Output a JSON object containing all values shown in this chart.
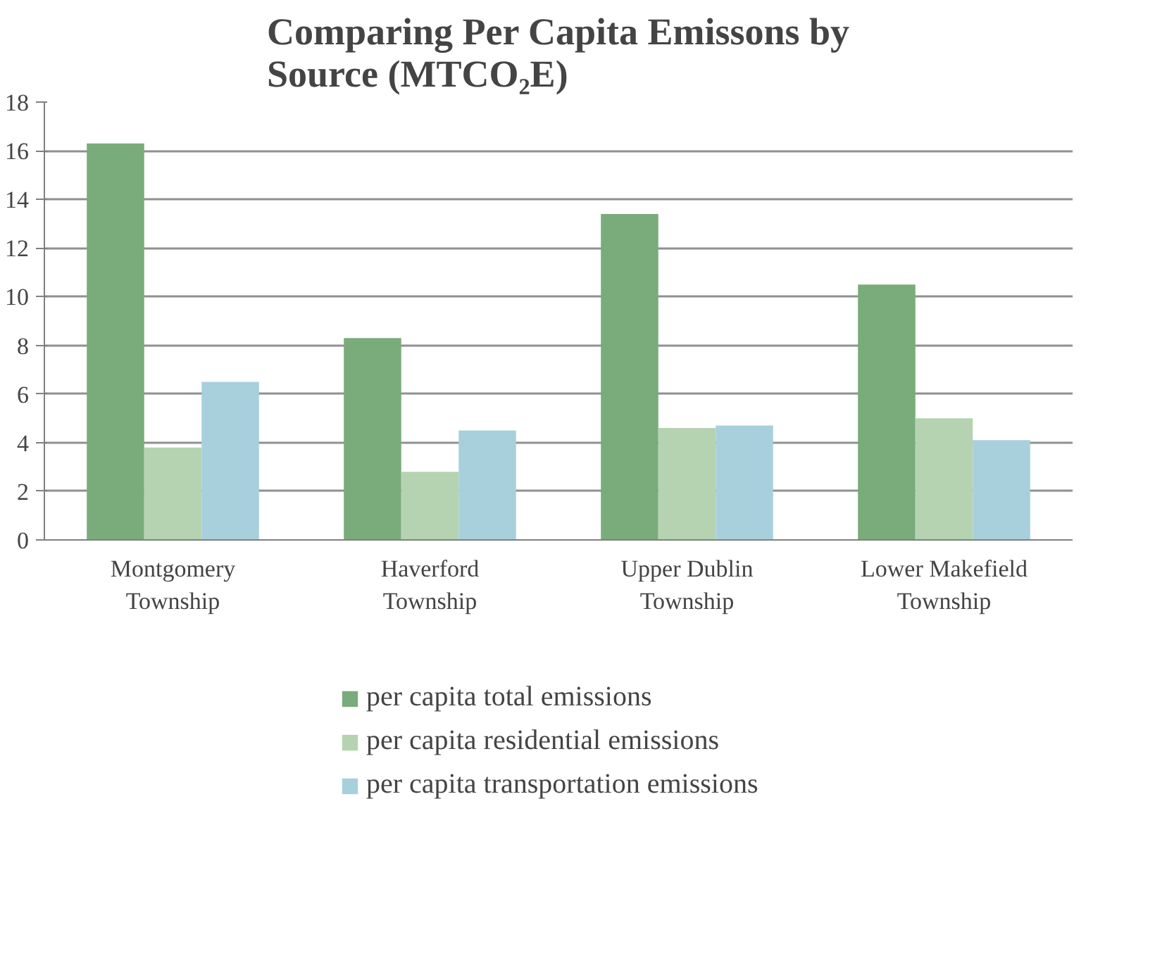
{
  "chart_data": {
    "type": "bar",
    "title": "Comparing Per Capita Emissons by Source (MTCO₂E)",
    "categories": [
      "Montgomery Township",
      "Haverford Township",
      "Upper Dublin Township",
      "Lower Makefield Township"
    ],
    "series": [
      {
        "name": "per capita total emissions",
        "color": "#7aab7a",
        "values": [
          16.3,
          8.3,
          13.4,
          10.5
        ]
      },
      {
        "name": "per capita residential emissions",
        "color": "#b5d3b0",
        "values": [
          3.8,
          2.8,
          4.6,
          5.0
        ]
      },
      {
        "name": "per capita transportation emissions",
        "color": "#a8d0dc",
        "values": [
          6.5,
          4.5,
          4.7,
          4.1
        ]
      }
    ],
    "ylim": [
      0,
      18
    ],
    "yticks": [
      0,
      2,
      4,
      6,
      8,
      10,
      12,
      14,
      16,
      18
    ],
    "grid": "y",
    "legend": "bottom"
  }
}
